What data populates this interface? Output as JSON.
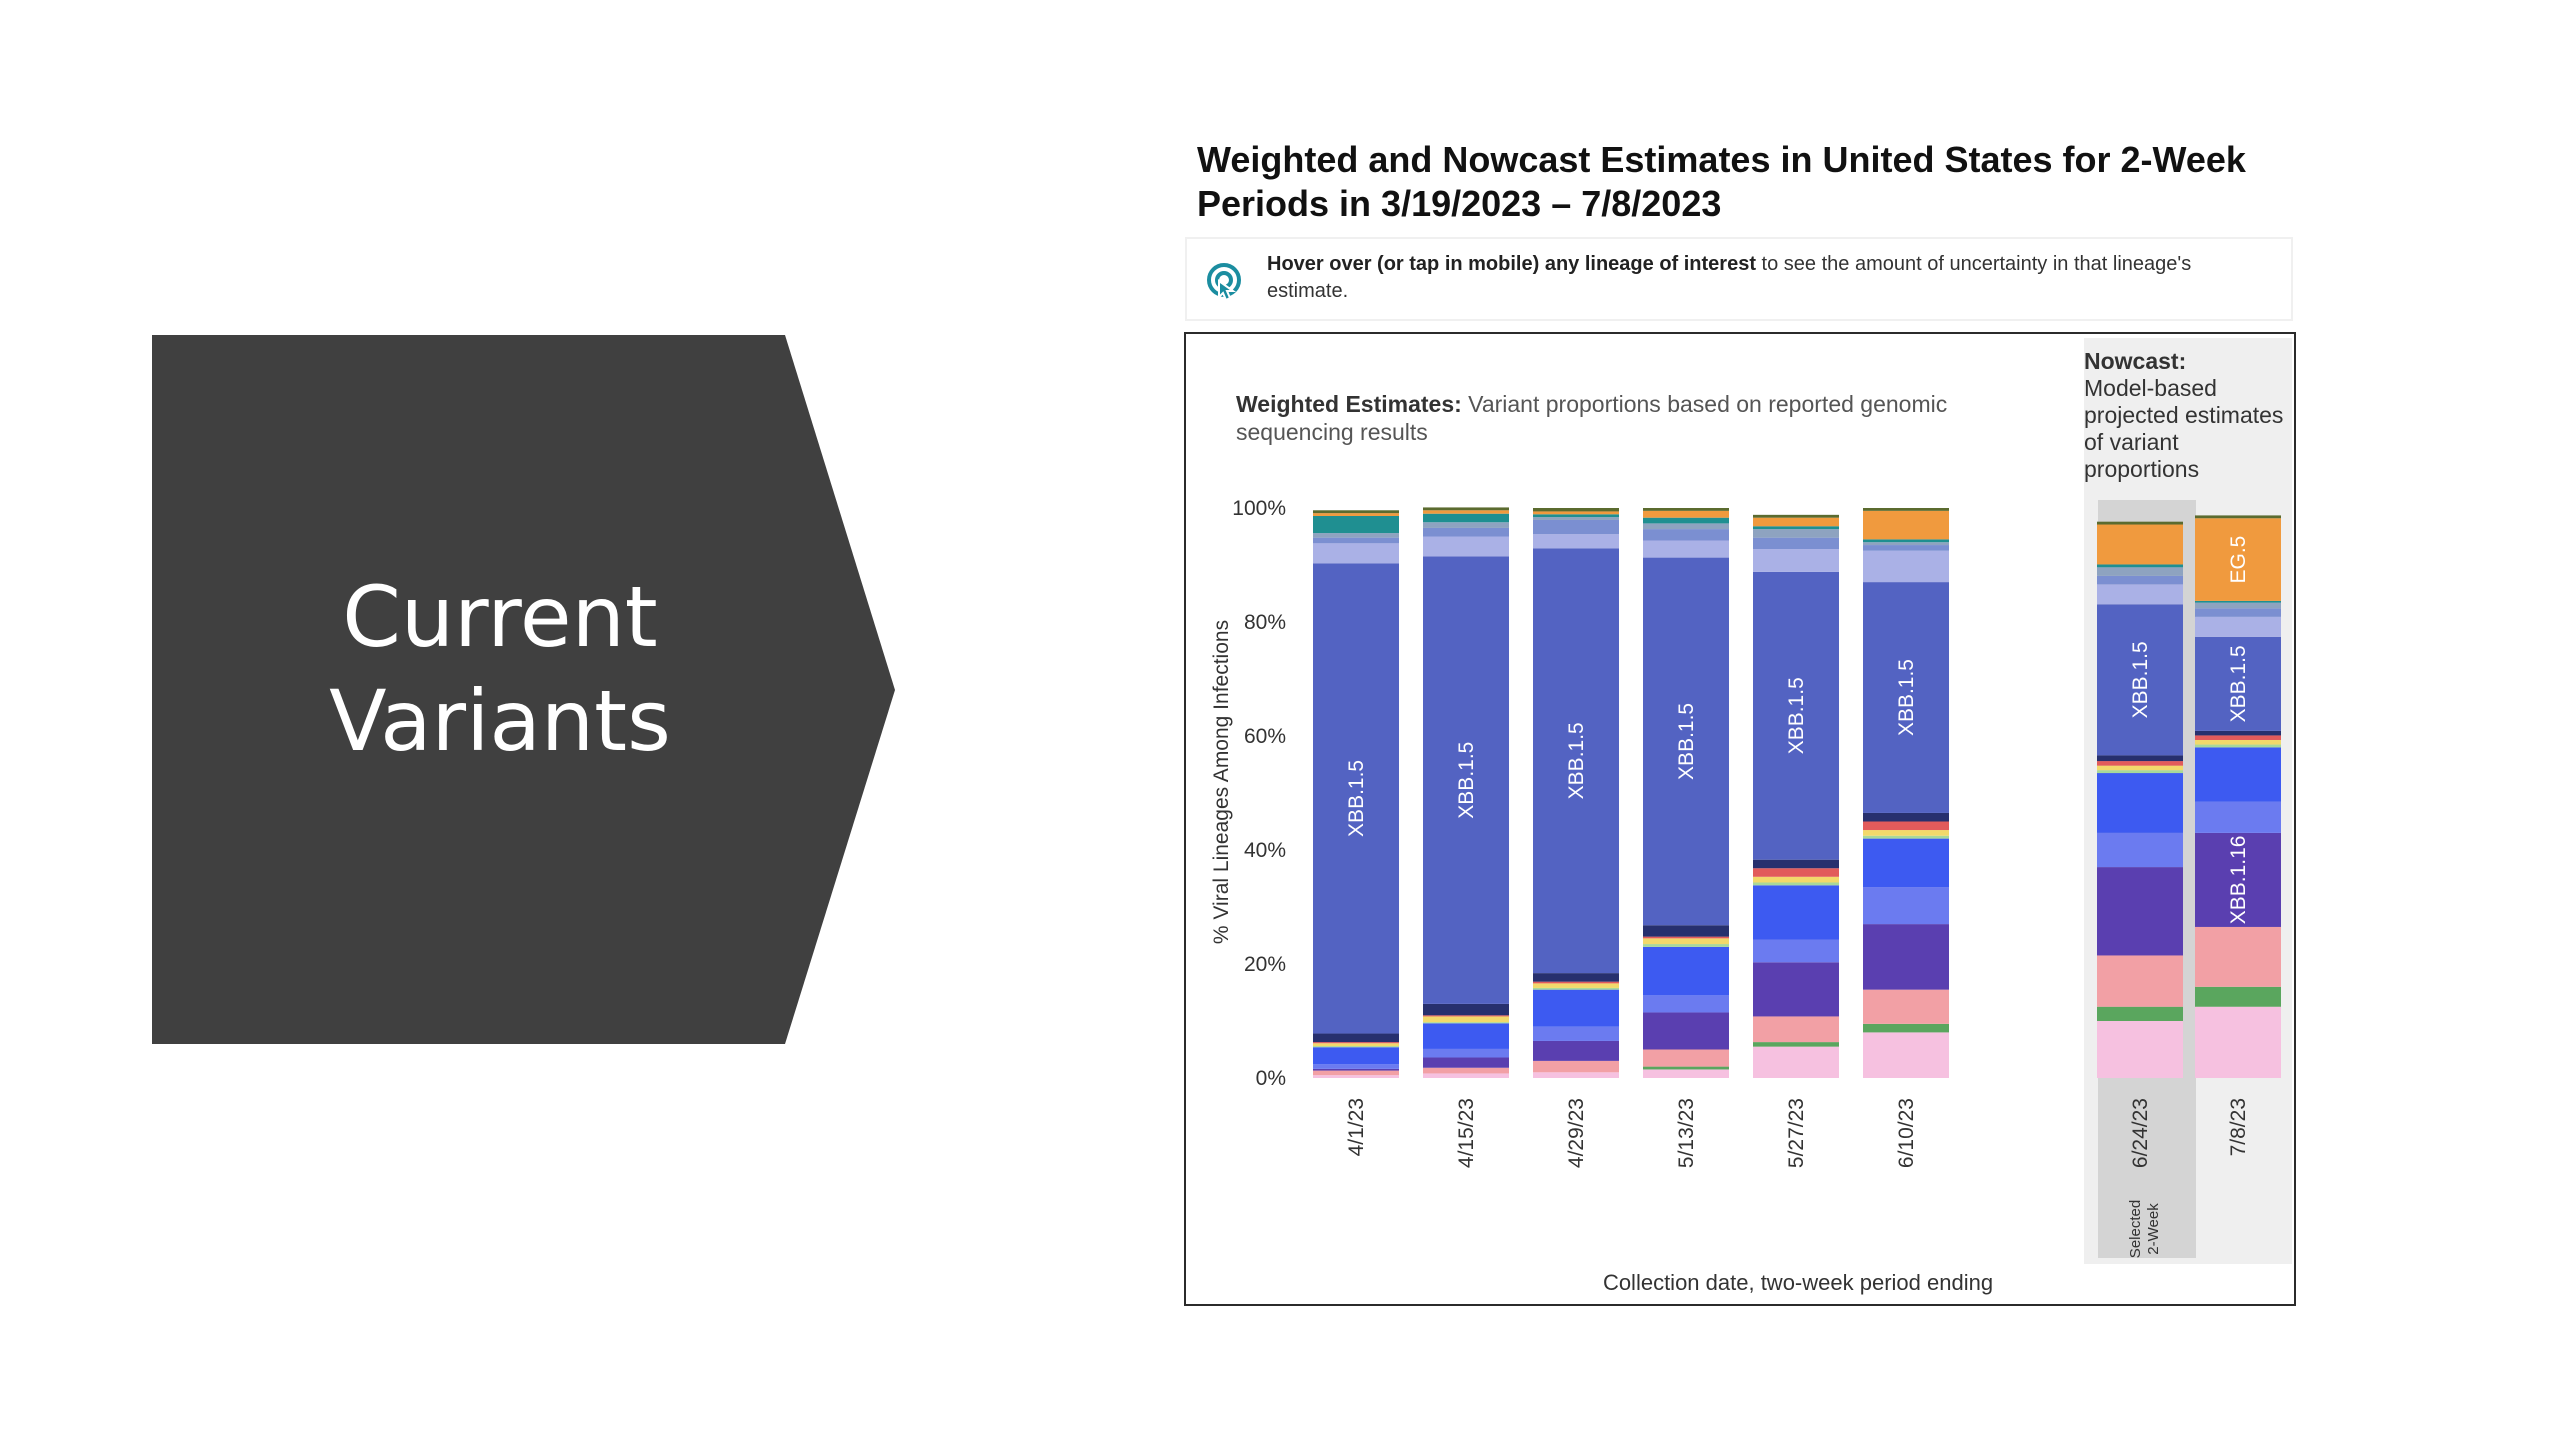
{
  "slide": {
    "title_lines": [
      "Current",
      "Variants"
    ],
    "shape_color": "#404040",
    "title_color": "#ffffff"
  },
  "chart_heading_lines": [
    "Weighted and Nowcast Estimates in United States for 2-Week",
    "Periods in 3/19/2023 – 7/8/2023"
  ],
  "hint": {
    "icon": "pointer-hand-icon",
    "bold": "Hover over (or tap in mobile) any lineage of interest",
    "rest": " to see the amount of uncertainty in that lineage's estimate."
  },
  "weighted_note": {
    "bold": "Weighted Estimates:",
    "rest": " Variant proportions based on reported genomic sequencing results"
  },
  "nowcast_note": {
    "bold": "Nowcast:",
    "rest": "Model-based projected estimates of variant proportions"
  },
  "selected_label_lines": [
    "Selected",
    "2-Week"
  ],
  "chart_data": {
    "type": "bar",
    "stacked": true,
    "ylabel": "% Viral Lineages Among Infections",
    "xlabel": "Collection date, two-week period ending",
    "ylim": [
      0,
      100
    ],
    "y_ticks": [
      "0%",
      "20%",
      "40%",
      "60%",
      "80%",
      "100%"
    ],
    "grid": false,
    "categories": [
      "4/1/23",
      "4/15/23",
      "4/29/23",
      "5/13/23",
      "5/27/23",
      "6/10/23",
      "6/24/23",
      "7/8/23"
    ],
    "nowcast_categories": [
      "6/24/23",
      "7/8/23"
    ],
    "selected_category": "6/24/23",
    "colors": {
      "pink": "#f6c1e0",
      "green": "#5aa65e",
      "light_green": "#a8d89a",
      "salmon": "#f2a0a5",
      "indigo": "#5a3fb0",
      "cornflower": "#6b7bf0",
      "blue": "#3d5af1",
      "yellow": "#f2d96b",
      "xbb15": "#5363c2",
      "navy": "#27306e",
      "lavender": "#aab1e6",
      "slate": "#7b8fd1",
      "grey_blue": "#8ea3c0",
      "teal": "#1f8f91",
      "orange": "#f09a3e",
      "red": "#e25b5b",
      "dark_olive": "#5b6b2f"
    },
    "series": [
      {
        "key": "pink",
        "values": [
          0.5,
          0.8,
          1.0,
          1.5,
          5.5,
          8.0,
          10.0,
          12.5
        ]
      },
      {
        "key": "green",
        "values": [
          0,
          0,
          0,
          0.5,
          0.8,
          1.5,
          2.5,
          3.5
        ]
      },
      {
        "key": "salmon",
        "values": [
          0.8,
          1.0,
          2.0,
          3.0,
          4.5,
          6.0,
          9.0,
          10.5
        ]
      },
      {
        "key": "indigo",
        "values": [
          0.3,
          1.8,
          3.5,
          6.5,
          9.5,
          11.5,
          15.5,
          16.5
        ]
      },
      {
        "key": "cornflower",
        "values": [
          0.8,
          1.5,
          2.5,
          3.0,
          4.0,
          6.5,
          6.0,
          5.5
        ]
      },
      {
        "key": "blue",
        "values": [
          3.0,
          4.5,
          6.5,
          8.5,
          9.5,
          8.5,
          10.5,
          9.5
        ]
      },
      {
        "key": "light_green",
        "values": [
          0.2,
          0.2,
          0.3,
          0.5,
          0.5,
          0.5,
          0.5,
          0.5
        ]
      },
      {
        "key": "yellow",
        "values": [
          0.5,
          1.0,
          0.8,
          1.0,
          1.0,
          1.0,
          0.8,
          0.8
        ]
      },
      {
        "key": "red",
        "values": [
          0.2,
          0.2,
          0.3,
          0.3,
          1.5,
          1.5,
          0.8,
          0.8
        ]
      },
      {
        "key": "navy",
        "values": [
          1.5,
          2.0,
          1.5,
          2.0,
          1.5,
          1.5,
          1.0,
          0.8
        ]
      },
      {
        "key": "xbb15",
        "values": [
          82.5,
          78.5,
          74.5,
          64.5,
          50.5,
          40.5,
          26.5,
          16.5
        ]
      },
      {
        "key": "lavender",
        "values": [
          3.5,
          3.5,
          2.5,
          3.0,
          4.0,
          5.5,
          3.5,
          3.5
        ]
      },
      {
        "key": "slate",
        "values": [
          1.0,
          1.5,
          2.5,
          2.0,
          2.0,
          1.0,
          1.5,
          1.5
        ]
      },
      {
        "key": "grey_blue",
        "values": [
          0.8,
          1.0,
          0.5,
          1.0,
          1.5,
          0.5,
          1.5,
          1.0
        ]
      },
      {
        "key": "teal",
        "values": [
          3.0,
          1.5,
          0.5,
          1.0,
          0.5,
          0.5,
          0.5,
          0.3
        ]
      },
      {
        "key": "orange",
        "values": [
          0.5,
          0.6,
          0.5,
          1.2,
          1.5,
          5.0,
          7.0,
          14.5
        ]
      },
      {
        "key": "dark_olive",
        "values": [
          0.5,
          0.5,
          0.6,
          0.5,
          0.5,
          0.5,
          0.5,
          0.5
        ]
      }
    ],
    "bar_labels": [
      {
        "category": "4/1/23",
        "series": "xbb15",
        "text": "XBB.1.5"
      },
      {
        "category": "4/15/23",
        "series": "xbb15",
        "text": "XBB.1.5"
      },
      {
        "category": "4/29/23",
        "series": "xbb15",
        "text": "XBB.1.5"
      },
      {
        "category": "5/13/23",
        "series": "xbb15",
        "text": "XBB.1.5"
      },
      {
        "category": "5/27/23",
        "series": "xbb15",
        "text": "XBB.1.5"
      },
      {
        "category": "6/10/23",
        "series": "xbb15",
        "text": "XBB.1.5"
      },
      {
        "category": "6/24/23",
        "series": "xbb15",
        "text": "XBB.1.5"
      },
      {
        "category": "7/8/23",
        "series": "xbb15",
        "text": "XBB.1.5"
      },
      {
        "category": "7/8/23",
        "series": "indigo",
        "text": "XBB.1.16"
      },
      {
        "category": "7/8/23",
        "series": "orange",
        "text": "EG.5"
      }
    ]
  }
}
